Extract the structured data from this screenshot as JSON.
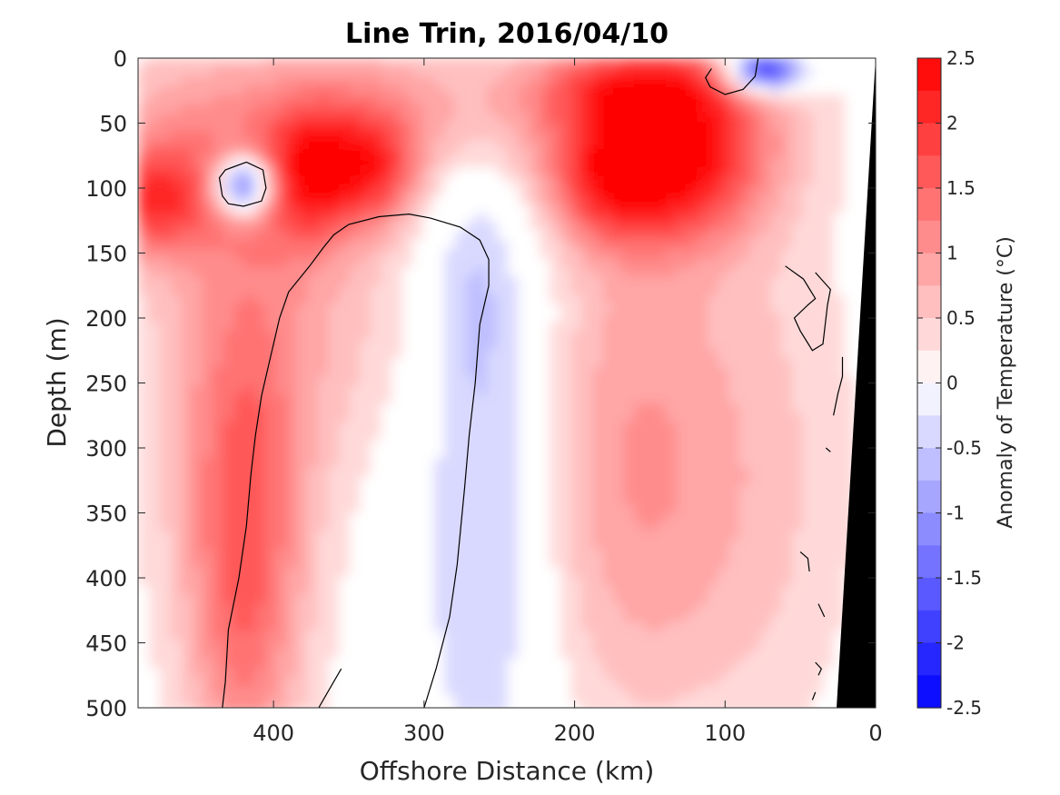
{
  "chart_data": {
    "type": "heatmap",
    "title": "Line Trin, 2016/04/10",
    "xlabel": "Offshore Distance (km)",
    "ylabel": "Depth (m)",
    "colorbar_label": "Anomaly of Temperature (°C)",
    "x_reversed": true,
    "y_reversed": true,
    "xlim": [
      0,
      490
    ],
    "ylim": [
      0,
      500
    ],
    "x_ticks": [
      400,
      300,
      200,
      100,
      0
    ],
    "x_tick_labels": [
      "400",
      "300",
      "200",
      "100",
      "0"
    ],
    "y_ticks": [
      0,
      50,
      100,
      150,
      200,
      250,
      300,
      350,
      400,
      450,
      500
    ],
    "y_tick_labels": [
      "0",
      "50",
      "100",
      "150",
      "200",
      "250",
      "300",
      "350",
      "400",
      "450",
      "500"
    ],
    "clim": [
      -2.5,
      2.5
    ],
    "colorbar_ticks": [
      2.5,
      2,
      1.5,
      1,
      0.5,
      0,
      -0.5,
      -1,
      -1.5,
      -2,
      -2.5
    ],
    "colorbar_tick_labels": [
      "2.5",
      "2",
      "1.5",
      "1",
      "0.5",
      "0",
      "-0.5",
      "-1",
      "-1.5",
      "-2",
      "-2.5"
    ],
    "colorbar_levels": [
      2.5,
      2.25,
      2.0,
      1.75,
      1.5,
      1.25,
      1.0,
      0.75,
      0.5,
      0.25,
      0,
      -0.25,
      -0.5,
      -0.75,
      -1.0,
      -1.25,
      -1.5,
      -1.75,
      -2.0,
      -2.25,
      -2.5
    ],
    "colors": {
      "warm_max": "#ff0000",
      "cold_max": "#0000ff",
      "zero": "#ffffff",
      "bathymetry": "#000000",
      "zero_contour": "#000000"
    },
    "features": [
      {
        "name": "warm surface core",
        "distance": [
          420,
          490
        ],
        "depth": [
          60,
          140
        ],
        "peak": 2.0
      },
      {
        "name": "cold eddy",
        "distance": 420,
        "depth": 100,
        "peak": -0.5
      },
      {
        "name": "warm subsurface core",
        "distance": 420,
        "depth": [
          250,
          500
        ],
        "peak": 1.5
      },
      {
        "name": "cold intrusion",
        "distance": [
          215,
          300
        ],
        "depth": [
          130,
          500
        ],
        "peak": -0.25
      },
      {
        "name": "warm near-shore core",
        "distance": [
          100,
          200
        ],
        "depth": [
          40,
          150
        ],
        "peak": 2.5
      },
      {
        "name": "cold surface lens",
        "distance": 75,
        "depth": 10,
        "peak": -0.75
      }
    ]
  }
}
